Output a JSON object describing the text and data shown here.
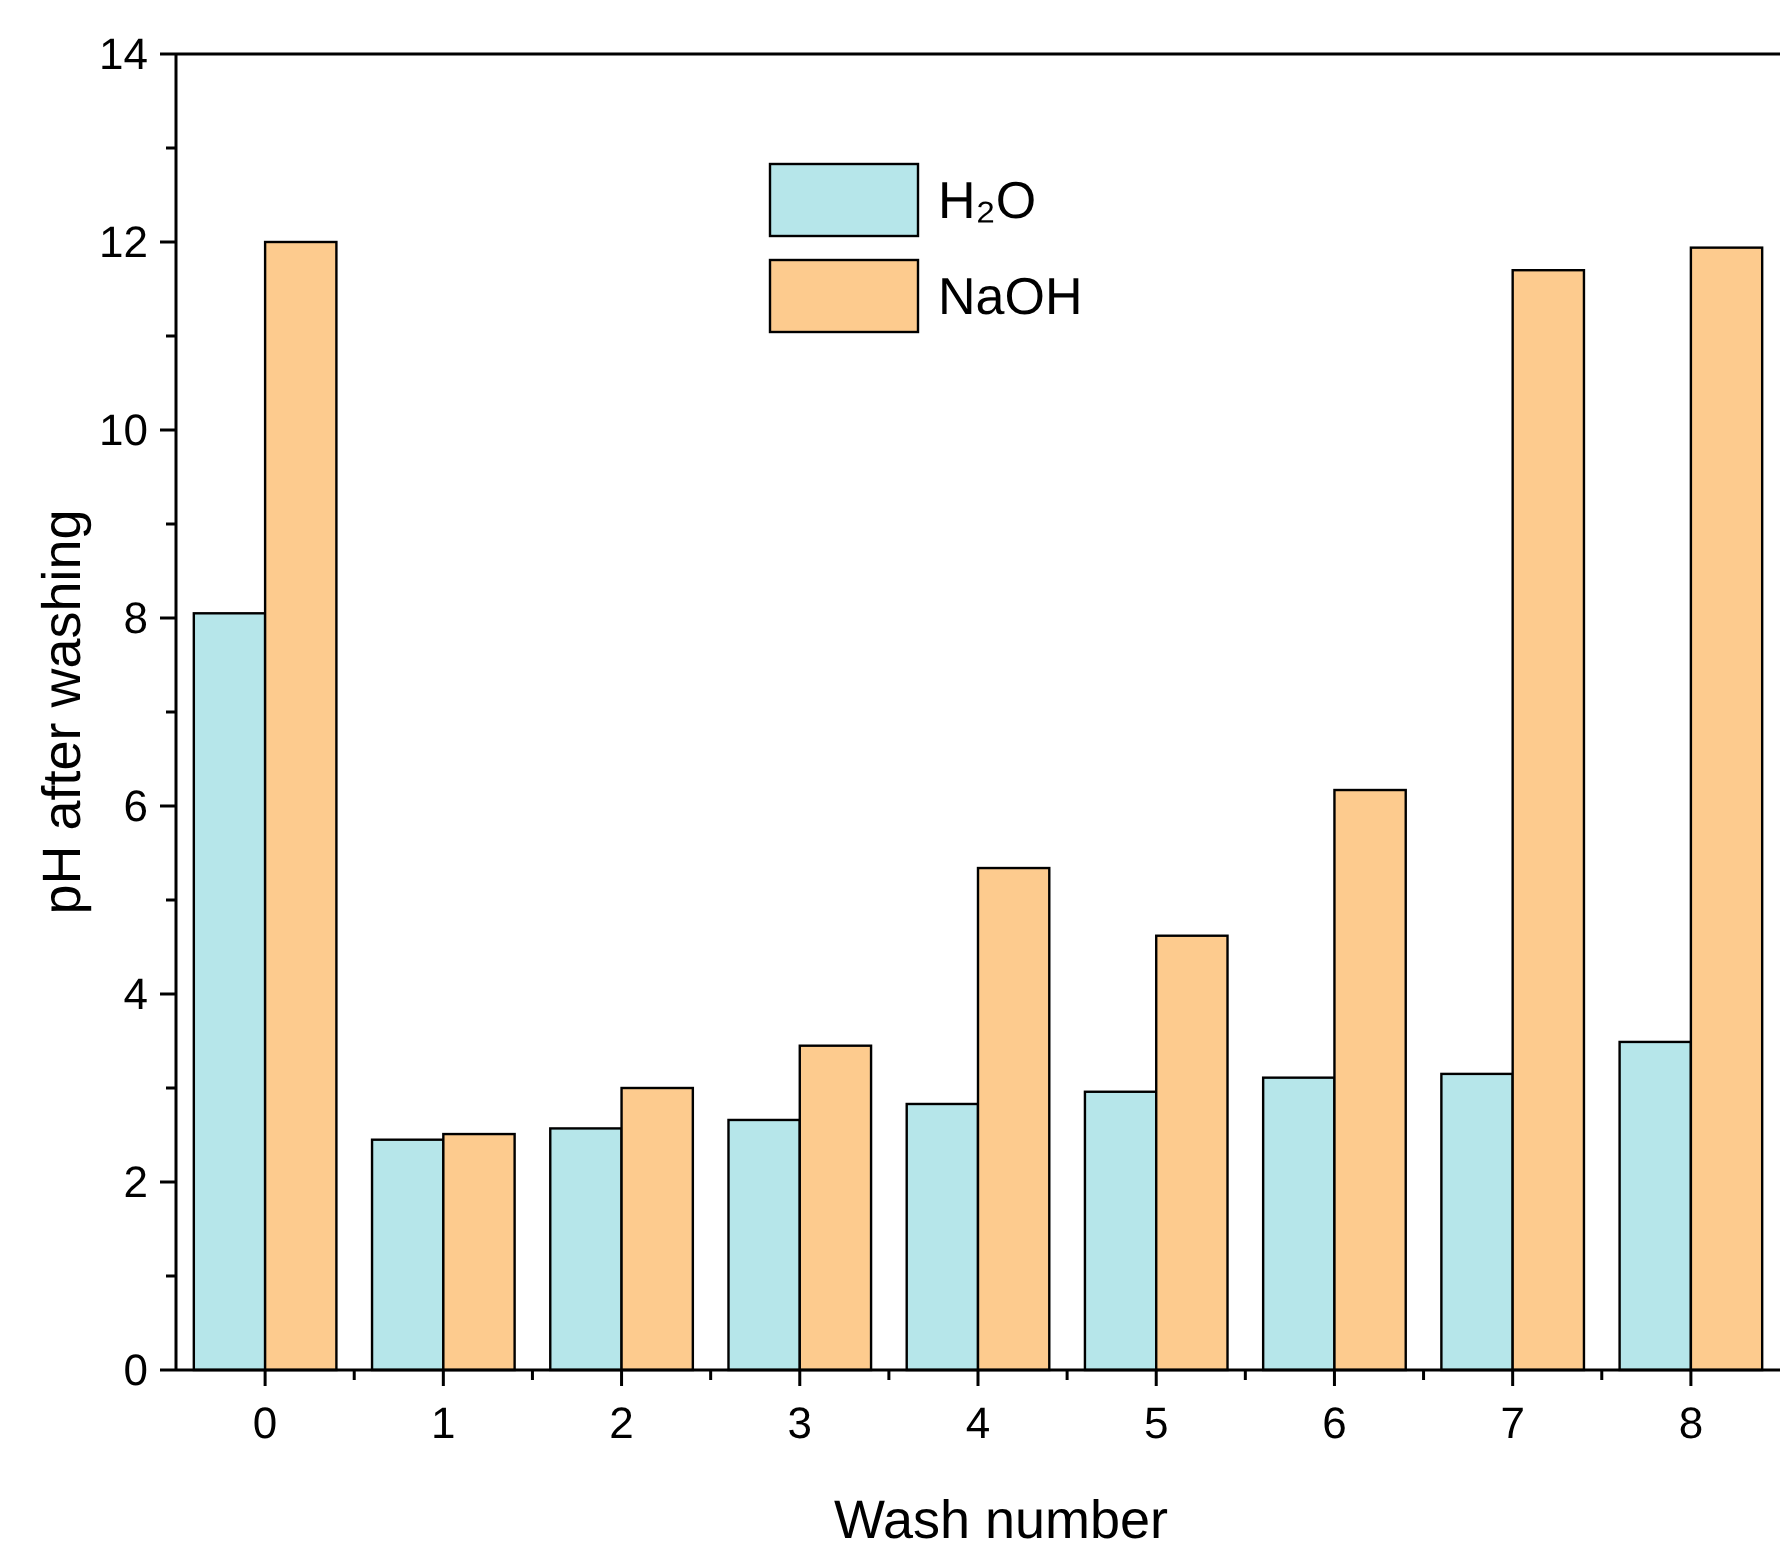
{
  "chart_data": {
    "type": "bar",
    "xlabel": "Wash number",
    "ylabel": "pH after washing",
    "categories": [
      "0",
      "1",
      "2",
      "3",
      "4",
      "5",
      "6",
      "7",
      "8"
    ],
    "series": [
      {
        "name": "H₂O",
        "color": "#b6e6ea",
        "values": [
          8.05,
          2.45,
          2.57,
          2.66,
          2.83,
          2.96,
          3.11,
          3.15,
          3.49
        ]
      },
      {
        "name": "NaOH",
        "color": "#fdcb8e",
        "values": [
          12.0,
          2.51,
          3.0,
          3.45,
          5.34,
          4.62,
          6.17,
          11.7,
          11.94
        ]
      }
    ],
    "ylim": [
      0,
      14
    ],
    "yticks": [
      0,
      2,
      4,
      6,
      8,
      10,
      12,
      14
    ],
    "grid": false,
    "legend": "top"
  }
}
